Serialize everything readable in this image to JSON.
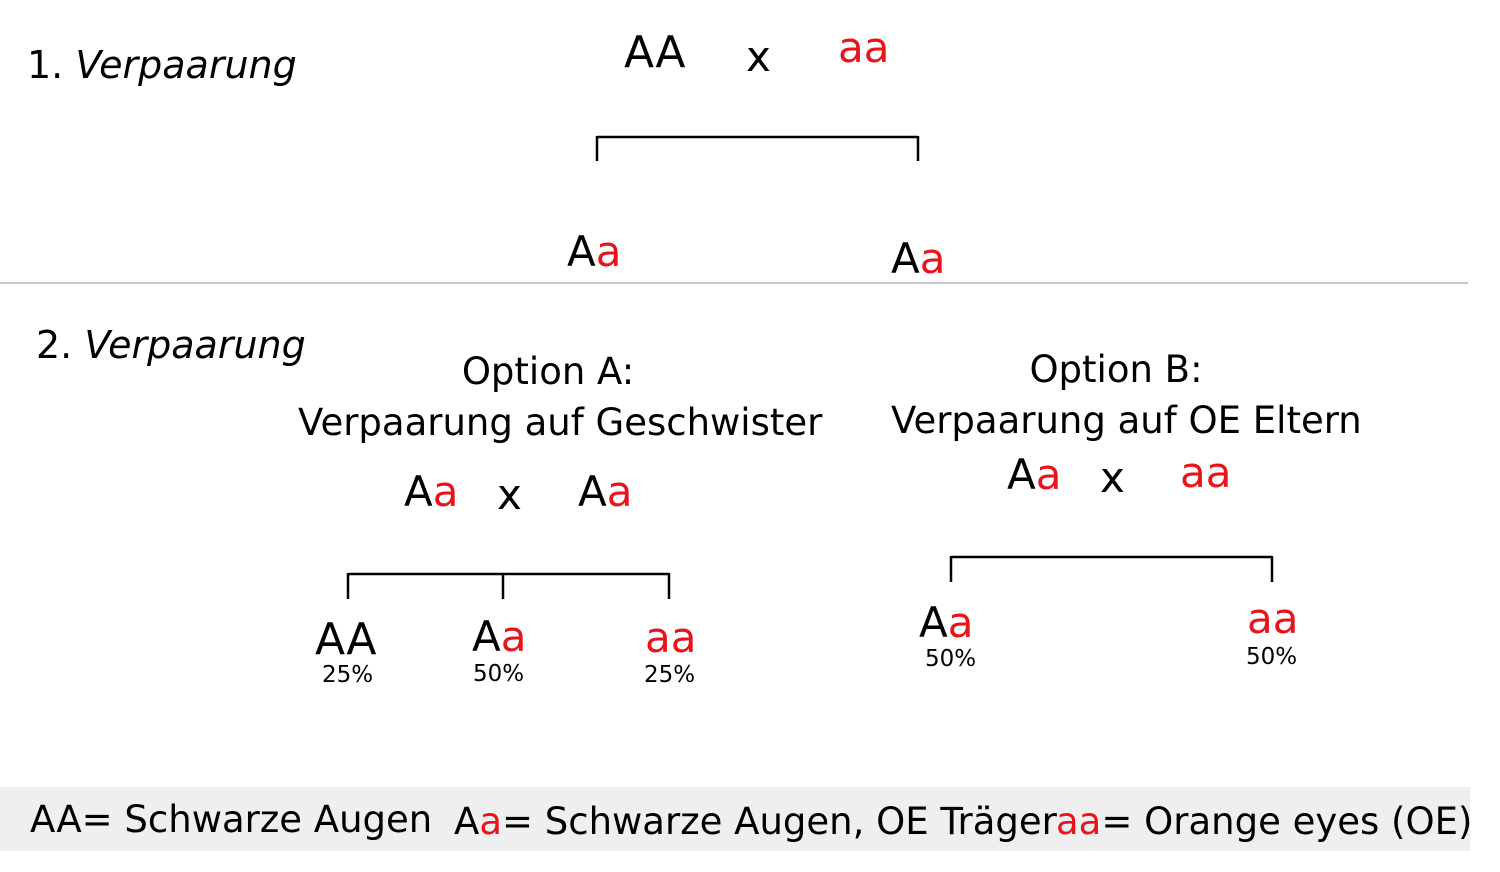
{
  "colors": {
    "dominant": "#000000",
    "recessive": "#e8141c",
    "legend_bg": "#efefef",
    "divider": "#b5b5b5"
  },
  "cross1": {
    "heading_num": "1.",
    "heading_word": "Verpaarung",
    "parent_left": "AA",
    "cross_symbol": "x",
    "parent_right": "aa",
    "offspring": [
      {
        "dom": "A",
        "rec": "a"
      },
      {
        "dom": "A",
        "rec": "a"
      }
    ]
  },
  "cross2": {
    "heading_num": "2.",
    "heading_word": "Verpaarung",
    "option_a": {
      "title": "Option A:",
      "subtitle": "Verpaarung auf Geschwister",
      "parent_left": {
        "dom": "A",
        "rec": "a"
      },
      "cross_symbol": "x",
      "parent_right": {
        "dom": "A",
        "rec": "a"
      },
      "offspring": [
        {
          "dom": "AA",
          "rec": "",
          "percent": "25%"
        },
        {
          "dom": "A",
          "rec": "a",
          "percent": "50%"
        },
        {
          "dom": "",
          "rec": "aa",
          "percent": "25%"
        }
      ]
    },
    "option_b": {
      "title": "Option B:",
      "subtitle": "Verpaarung auf OE Eltern",
      "parent_left": {
        "dom": "A",
        "rec": "a"
      },
      "cross_symbol": "x",
      "parent_right": "aa",
      "offspring": [
        {
          "dom": "A",
          "rec": "a",
          "percent": "50%"
        },
        {
          "dom": "",
          "rec": "aa",
          "percent": "50%"
        }
      ]
    }
  },
  "legend": {
    "item1": {
      "dom": "AA",
      "text": "= Schwarze Augen"
    },
    "item2": {
      "dom": "A",
      "rec": "a",
      "text": "= Schwarze Augen, OE Träger"
    },
    "item3": {
      "rec": "aa",
      "text": "= Orange eyes (OE)"
    }
  }
}
